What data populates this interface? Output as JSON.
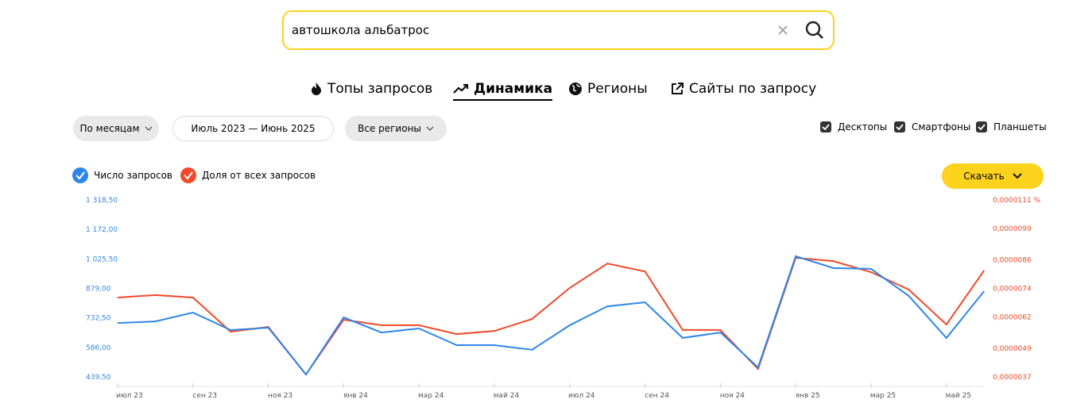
{
  "search": {
    "query": "автошкола альбатрос"
  },
  "tabs": [
    "Топы запросов",
    "Динамика",
    "Регионы",
    "Сайты по запросу"
  ],
  "filters": {
    "period_group": "По месяцам",
    "date_range": "Июль 2023 — Июнь 2025",
    "regions": "Все регионы"
  },
  "devices": [
    "Десктопы",
    "Смартфоны",
    "Планшеты"
  ],
  "download": "Скачать",
  "chart_data": {
    "type": "line",
    "categories": [
      "июл 23",
      null,
      "сен 23",
      null,
      "ноя 23",
      null,
      "янв 24",
      null,
      "мар 24",
      null,
      "май 24",
      null,
      "июл 24",
      null,
      "сен 24",
      null,
      "ноя 24",
      null,
      "янв 25",
      null,
      "мар 25",
      null,
      "май 25",
      null
    ],
    "series": [
      {
        "name": "Число запросов",
        "color": "#2f86e8",
        "values": [
          707,
          715,
          759,
          672,
          684,
          451,
          735,
          660,
          680,
          597,
          597,
          574,
          696,
          790,
          810,
          633,
          660,
          487,
          1039,
          980,
          976,
          842,
          633,
          865
        ]
      },
      {
        "name": "Доля от всех запросов",
        "color": "#ef4a2b",
        "axis": "y2",
        "values": [
          7.02e-06,
          7.12e-06,
          7.02e-06,
          5.59e-06,
          5.79e-06,
          3.8e-06,
          6.09e-06,
          5.86e-06,
          5.86e-06,
          5.49e-06,
          5.62e-06,
          6.12e-06,
          7.42e-06,
          8.44e-06,
          8.11e-06,
          5.66e-06,
          5.66e-06,
          4.03e-06,
          8.68e-06,
          8.54e-06,
          8.08e-06,
          7.35e-06,
          5.89e-06,
          8.15e-06
        ]
      }
    ],
    "ylim": [
      439.5,
      1318.5
    ],
    "yticks": [
      {
        "value": 439.5,
        "label": "439,50"
      },
      {
        "value": 586,
        "label": "586,00"
      },
      {
        "value": 732.5,
        "label": "732,50"
      },
      {
        "value": 879,
        "label": "879,00"
      },
      {
        "value": 1025.5,
        "label": "1 025,50"
      },
      {
        "value": 1172,
        "label": "1 172,00"
      },
      {
        "value": 1318.5,
        "label": "1 318,50"
      }
    ],
    "y2lim": [
      3.7e-06,
      1.11e-05
    ],
    "y2ticks": [
      {
        "value": 3.7e-06,
        "label": "0,0000037"
      },
      {
        "value": 4.9e-06,
        "label": "0,0000049"
      },
      {
        "value": 6.2e-06,
        "label": "0,0000062"
      },
      {
        "value": 7.4e-06,
        "label": "0,0000074"
      },
      {
        "value": 8.6e-06,
        "label": "0,0000086"
      },
      {
        "value": 9.9e-06,
        "label": "0,0000099"
      },
      {
        "value": 1.11e-05,
        "label": "0,0000111 %"
      }
    ]
  }
}
